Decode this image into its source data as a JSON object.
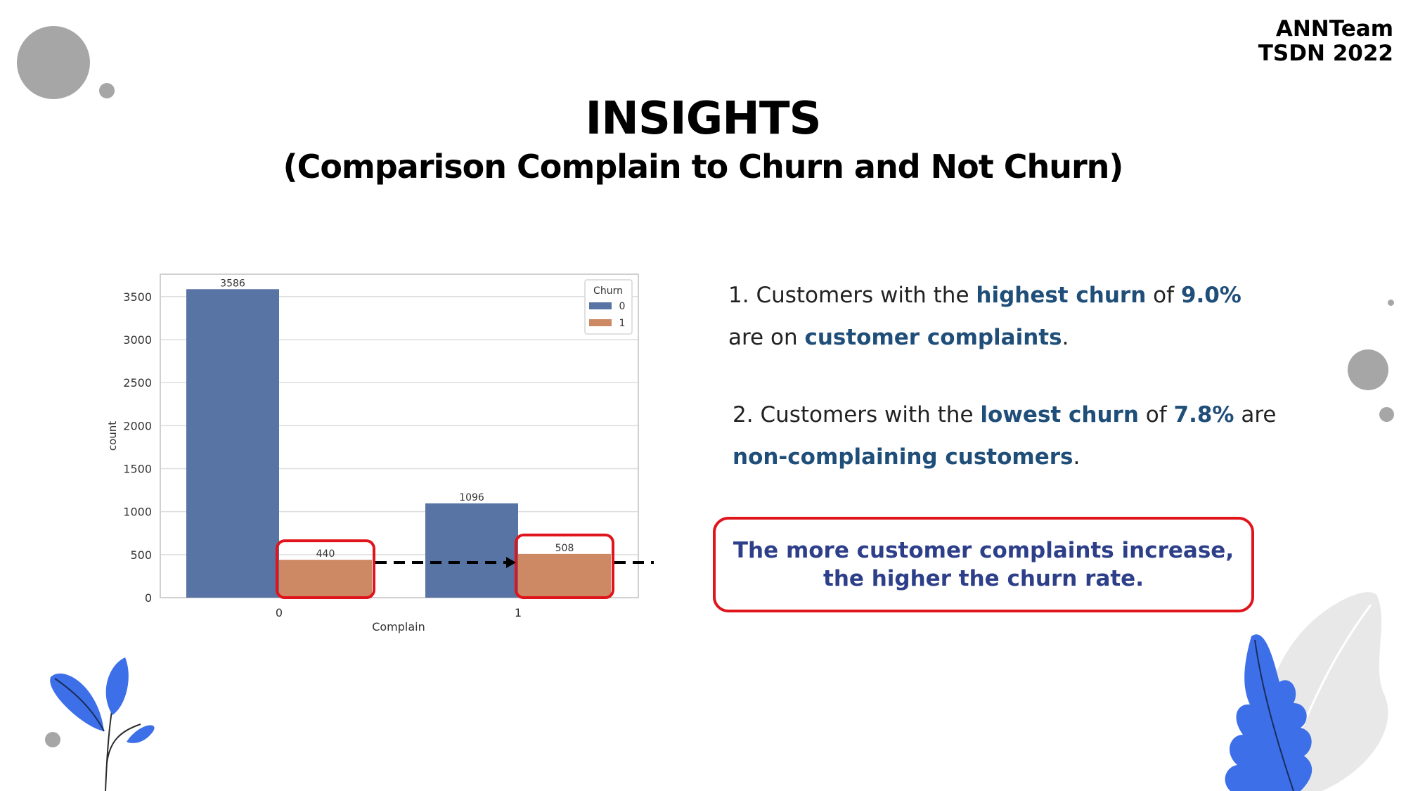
{
  "brand": {
    "line1": "ANNTeam",
    "line2": "TSDN 2022"
  },
  "header": {
    "title": "INSIGHTS",
    "subtitle": "(Comparison Complain to Churn and Not Churn)"
  },
  "insights": [
    {
      "number": "1.",
      "t1": "Customers with the ",
      "h1": "highest churn",
      "t2": " of ",
      "h2": "9.0%",
      "t3": "are on ",
      "h3": "customer complaints",
      "t4": "."
    },
    {
      "number": "2.",
      "t1": "Customers with the ",
      "h1": "lowest churn",
      "t2": " of ",
      "h2": "7.8%",
      "t3": " are",
      "h3": "non-complaining customers",
      "t4": "."
    }
  ],
  "conclusion": "The more customer complaints increase, the higher the churn rate.",
  "colors": {
    "series0": "#5874a4",
    "series1": "#cc8963",
    "highlight_box": "#e0141b",
    "accent_text": "#1f4e79",
    "conclusion_text": "#2e3f8a",
    "decor_gray": "#a6a6a6",
    "leaf_blue": "#3d6fe8",
    "leaf_gray": "#e8e8e8"
  },
  "chart_data": {
    "type": "bar",
    "xlabel": "Complain",
    "ylabel": "count",
    "categories": [
      "0",
      "1"
    ],
    "legend_title": "Churn",
    "legend_position": "top-right",
    "series": [
      {
        "name": "0",
        "values": [
          3586,
          1096
        ]
      },
      {
        "name": "1",
        "values": [
          440,
          508
        ]
      }
    ],
    "ylim": [
      0,
      3760
    ],
    "yticks": [
      0,
      500,
      1000,
      1500,
      2000,
      2500,
      3000,
      3500
    ],
    "grid": true
  }
}
